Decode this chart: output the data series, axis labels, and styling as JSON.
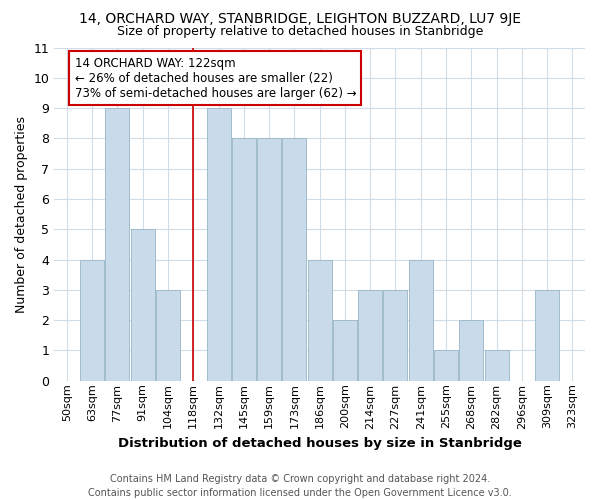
{
  "title1": "14, ORCHARD WAY, STANBRIDGE, LEIGHTON BUZZARD, LU7 9JE",
  "title2": "Size of property relative to detached houses in Stanbridge",
  "xlabel": "Distribution of detached houses by size in Stanbridge",
  "ylabel": "Number of detached properties",
  "categories": [
    "50sqm",
    "63sqm",
    "77sqm",
    "91sqm",
    "104sqm",
    "118sqm",
    "132sqm",
    "145sqm",
    "159sqm",
    "173sqm",
    "186sqm",
    "200sqm",
    "214sqm",
    "227sqm",
    "241sqm",
    "255sqm",
    "268sqm",
    "282sqm",
    "296sqm",
    "309sqm",
    "323sqm"
  ],
  "values": [
    0,
    4,
    9,
    5,
    3,
    0,
    9,
    8,
    8,
    8,
    4,
    2,
    3,
    3,
    4,
    1,
    2,
    1,
    0,
    3,
    0
  ],
  "bar_color": "#c9daea",
  "bar_edge_color": "#a0bccc",
  "vline_x_index": 5,
  "vline_color": "#cc0000",
  "annotation_line1": "14 ORCHARD WAY: 122sqm",
  "annotation_line2": "← 26% of detached houses are smaller (22)",
  "annotation_line3": "73% of semi-detached houses are larger (62) →",
  "annotation_box_color": "#ffffff",
  "annotation_box_edge": "#cc0000",
  "ylim": [
    0,
    11
  ],
  "yticks": [
    0,
    1,
    2,
    3,
    4,
    5,
    6,
    7,
    8,
    9,
    10,
    11
  ],
  "footer": "Contains HM Land Registry data © Crown copyright and database right 2024.\nContains public sector information licensed under the Open Government Licence v3.0.",
  "bg_color": "#ffffff",
  "plot_bg_color": "#ffffff",
  "grid_color": "#d0dce8"
}
